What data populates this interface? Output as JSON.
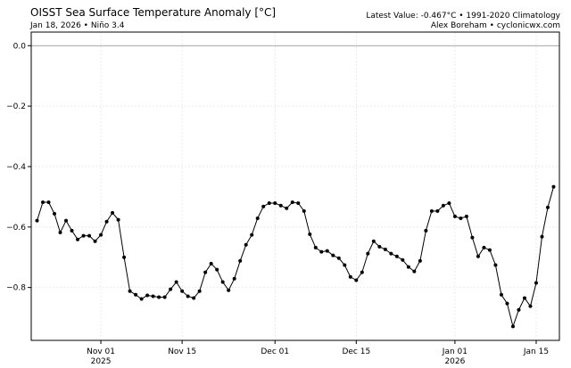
{
  "chart_data": {
    "type": "line",
    "title": "OISST Sea Surface Temperature Anomaly [°C]",
    "subtitle": "Jan 18, 2026 • Niño 3.4",
    "annotations": [
      "Latest Value: -0.467°C • 1991-2020 Climatology",
      "Alex Boreham • cyclonicwx.com"
    ],
    "x": [
      "2025-10-21",
      "2025-10-22",
      "2025-10-23",
      "2025-10-24",
      "2025-10-25",
      "2025-10-26",
      "2025-10-27",
      "2025-10-28",
      "2025-10-29",
      "2025-10-30",
      "2025-10-31",
      "2025-11-01",
      "2025-11-02",
      "2025-11-03",
      "2025-11-04",
      "2025-11-05",
      "2025-11-06",
      "2025-11-07",
      "2025-11-08",
      "2025-11-09",
      "2025-11-10",
      "2025-11-11",
      "2025-11-12",
      "2025-11-13",
      "2025-11-14",
      "2025-11-15",
      "2025-11-16",
      "2025-11-17",
      "2025-11-18",
      "2025-11-19",
      "2025-11-20",
      "2025-11-21",
      "2025-11-22",
      "2025-11-23",
      "2025-11-24",
      "2025-11-25",
      "2025-11-26",
      "2025-11-27",
      "2025-11-28",
      "2025-11-29",
      "2025-11-30",
      "2025-12-01",
      "2025-12-02",
      "2025-12-03",
      "2025-12-04",
      "2025-12-05",
      "2025-12-06",
      "2025-12-07",
      "2025-12-08",
      "2025-12-09",
      "2025-12-10",
      "2025-12-11",
      "2025-12-12",
      "2025-12-13",
      "2025-12-14",
      "2025-12-15",
      "2025-12-16",
      "2025-12-17",
      "2025-12-18",
      "2025-12-19",
      "2025-12-20",
      "2025-12-21",
      "2025-12-22",
      "2025-12-23",
      "2025-12-24",
      "2025-12-25",
      "2025-12-26",
      "2025-12-27",
      "2025-12-28",
      "2025-12-29",
      "2025-12-30",
      "2025-12-31",
      "2026-01-01",
      "2026-01-02",
      "2026-01-03",
      "2026-01-04",
      "2026-01-05",
      "2026-01-06",
      "2026-01-07",
      "2026-01-08",
      "2026-01-09",
      "2026-01-10",
      "2026-01-11",
      "2026-01-12",
      "2026-01-13",
      "2026-01-14",
      "2026-01-15",
      "2026-01-16",
      "2026-01-17",
      "2026-01-18"
    ],
    "series": [
      {
        "name": "Niño 3.4",
        "color": "#000000",
        "values": [
          -0.579,
          -0.518,
          -0.518,
          -0.556,
          -0.618,
          -0.579,
          -0.612,
          -0.641,
          -0.629,
          -0.629,
          -0.647,
          -0.626,
          -0.582,
          -0.553,
          -0.576,
          -0.7,
          -0.812,
          -0.824,
          -0.838,
          -0.826,
          -0.829,
          -0.832,
          -0.832,
          -0.806,
          -0.782,
          -0.812,
          -0.829,
          -0.835,
          -0.812,
          -0.75,
          -0.721,
          -0.741,
          -0.782,
          -0.809,
          -0.771,
          -0.712,
          -0.659,
          -0.626,
          -0.571,
          -0.532,
          -0.521,
          -0.521,
          -0.529,
          -0.538,
          -0.518,
          -0.521,
          -0.547,
          -0.624,
          -0.668,
          -0.682,
          -0.679,
          -0.694,
          -0.703,
          -0.726,
          -0.765,
          -0.776,
          -0.75,
          -0.688,
          -0.647,
          -0.665,
          -0.674,
          -0.688,
          -0.697,
          -0.709,
          -0.732,
          -0.747,
          -0.712,
          -0.612,
          -0.547,
          -0.547,
          -0.529,
          -0.521,
          -0.565,
          -0.571,
          -0.565,
          -0.635,
          -0.697,
          -0.668,
          -0.676,
          -0.726,
          -0.824,
          -0.853,
          -0.929,
          -0.874,
          -0.835,
          -0.862,
          -0.785,
          -0.632,
          -0.535,
          -0.467
        ]
      }
    ],
    "reference_line": 0,
    "xlim": [
      "2025-10-20",
      "2026-01-19"
    ],
    "xticks": [
      {
        "value": "2025-11-01",
        "label": "Nov 01",
        "year": "2025"
      },
      {
        "value": "2025-11-15",
        "label": "Nov 15"
      },
      {
        "value": "2025-12-01",
        "label": "Dec 01"
      },
      {
        "value": "2025-12-15",
        "label": "Dec 15"
      },
      {
        "value": "2026-01-01",
        "label": "Jan 01",
        "year": "2026"
      },
      {
        "value": "2026-01-15",
        "label": "Jan 15"
      }
    ],
    "ylim": [
      -0.975,
      0.045
    ],
    "yticks": [
      {
        "value": 0,
        "label": "0.0"
      },
      {
        "value": -0.2,
        "label": "−0.2"
      },
      {
        "value": -0.4,
        "label": "−0.4"
      },
      {
        "value": -0.6,
        "label": "−0.6"
      },
      {
        "value": -0.8,
        "label": "−0.8"
      }
    ],
    "grid": true
  }
}
